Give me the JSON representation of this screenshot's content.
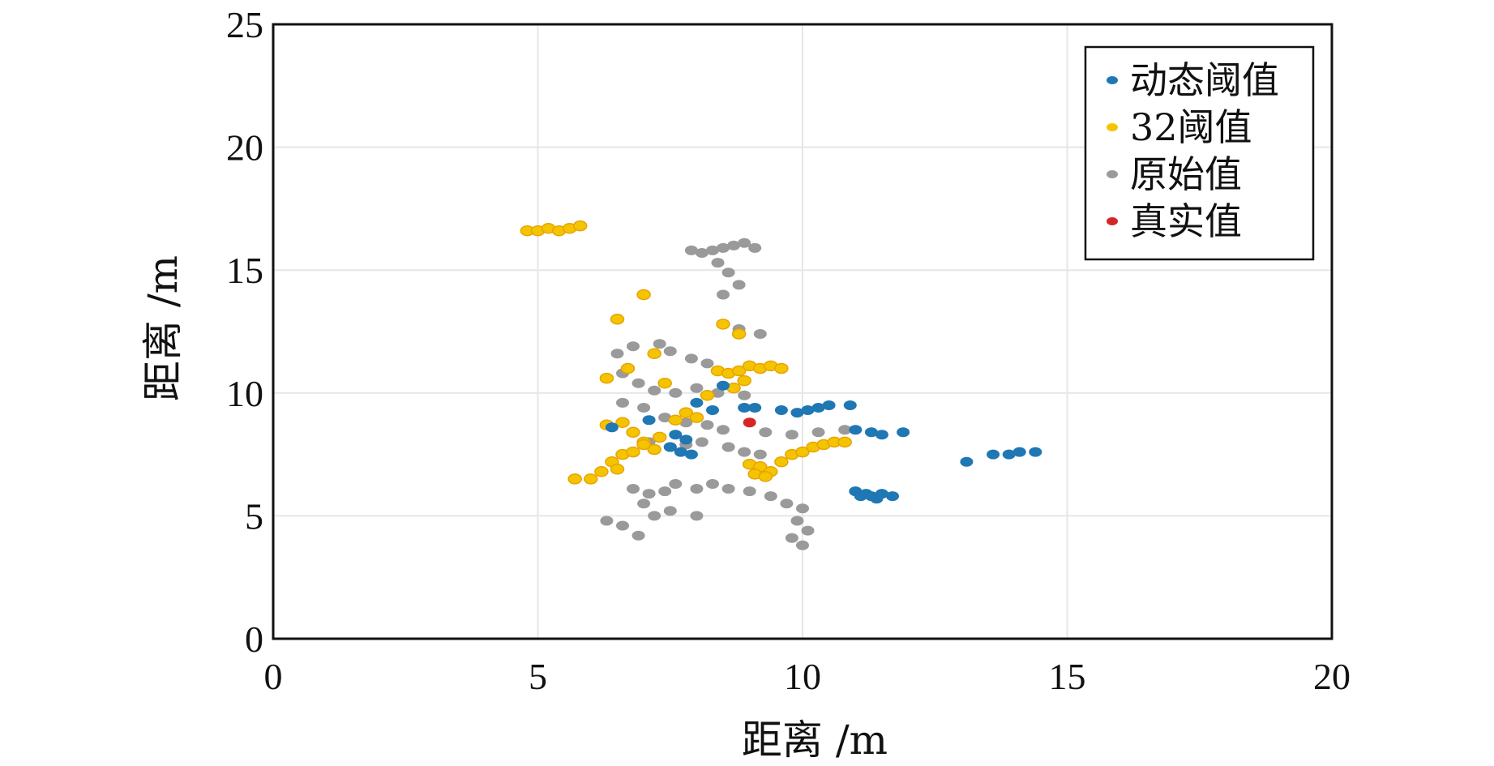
{
  "chart_data": {
    "type": "scatter",
    "xlabel": "距离 /m",
    "ylabel": "距离 /m",
    "xlim": [
      0,
      20
    ],
    "ylim": [
      0,
      25
    ],
    "xticks": [
      "0",
      "5",
      "10",
      "15",
      "20"
    ],
    "yticks": [
      "0",
      "5",
      "10",
      "15",
      "20",
      "25"
    ],
    "grid": true,
    "legend": "top-right",
    "series": [
      {
        "name": "动态阈值",
        "color": "#1f77b4",
        "points": [
          [
            6.4,
            8.6
          ],
          [
            7.1,
            8.9
          ],
          [
            7.5,
            7.8
          ],
          [
            7.7,
            7.6
          ],
          [
            7.9,
            7.5
          ],
          [
            7.8,
            8.1
          ],
          [
            7.6,
            8.3
          ],
          [
            8.0,
            9.6
          ],
          [
            8.3,
            9.3
          ],
          [
            8.5,
            10.3
          ],
          [
            8.9,
            9.4
          ],
          [
            9.1,
            9.4
          ],
          [
            9.6,
            9.3
          ],
          [
            9.9,
            9.2
          ],
          [
            10.1,
            9.3
          ],
          [
            10.3,
            9.4
          ],
          [
            10.5,
            9.5
          ],
          [
            10.9,
            9.5
          ],
          [
            11.0,
            8.5
          ],
          [
            11.3,
            8.4
          ],
          [
            11.5,
            8.3
          ],
          [
            11.9,
            8.4
          ],
          [
            11.0,
            6.0
          ],
          [
            11.1,
            5.8
          ],
          [
            11.3,
            5.8
          ],
          [
            11.5,
            5.9
          ],
          [
            11.7,
            5.8
          ],
          [
            11.2,
            5.9
          ],
          [
            11.4,
            5.7
          ],
          [
            13.1,
            7.2
          ],
          [
            13.6,
            7.5
          ],
          [
            13.9,
            7.5
          ],
          [
            14.1,
            7.6
          ],
          [
            14.4,
            7.6
          ]
        ]
      },
      {
        "name": "32阈值",
        "color": "#f5c400",
        "points": [
          [
            4.8,
            16.6
          ],
          [
            5.0,
            16.6
          ],
          [
            5.2,
            16.7
          ],
          [
            5.4,
            16.6
          ],
          [
            5.6,
            16.7
          ],
          [
            5.8,
            16.8
          ],
          [
            7.0,
            14.0
          ],
          [
            6.5,
            13.0
          ],
          [
            8.5,
            12.8
          ],
          [
            8.8,
            12.4
          ],
          [
            6.3,
            10.6
          ],
          [
            6.7,
            11.0
          ],
          [
            7.2,
            11.6
          ],
          [
            7.4,
            10.4
          ],
          [
            8.4,
            10.9
          ],
          [
            8.6,
            10.8
          ],
          [
            8.8,
            10.9
          ],
          [
            9.0,
            11.1
          ],
          [
            9.2,
            11.0
          ],
          [
            9.4,
            11.1
          ],
          [
            9.6,
            11.0
          ],
          [
            8.9,
            10.5
          ],
          [
            8.7,
            10.2
          ],
          [
            6.3,
            8.7
          ],
          [
            6.6,
            8.8
          ],
          [
            6.8,
            8.4
          ],
          [
            7.0,
            8.0
          ],
          [
            7.2,
            7.7
          ],
          [
            7.3,
            8.2
          ],
          [
            7.6,
            8.9
          ],
          [
            7.8,
            9.2
          ],
          [
            8.0,
            9.0
          ],
          [
            8.2,
            9.9
          ],
          [
            6.0,
            6.5
          ],
          [
            6.2,
            6.8
          ],
          [
            6.4,
            7.2
          ],
          [
            6.6,
            7.5
          ],
          [
            6.8,
            7.6
          ],
          [
            7.0,
            7.9
          ],
          [
            5.7,
            6.5
          ],
          [
            6.5,
            6.9
          ],
          [
            9.0,
            7.1
          ],
          [
            9.2,
            7.0
          ],
          [
            9.4,
            6.8
          ],
          [
            9.6,
            7.2
          ],
          [
            9.8,
            7.5
          ],
          [
            10.0,
            7.6
          ],
          [
            10.2,
            7.8
          ],
          [
            10.4,
            7.9
          ],
          [
            10.6,
            8.0
          ],
          [
            10.8,
            8.0
          ],
          [
            9.1,
            6.7
          ],
          [
            9.3,
            6.6
          ]
        ]
      },
      {
        "name": "原始值",
        "color": "#9a9a9a",
        "points": [
          [
            7.9,
            15.8
          ],
          [
            8.1,
            15.7
          ],
          [
            8.3,
            15.8
          ],
          [
            8.5,
            15.9
          ],
          [
            8.7,
            16.0
          ],
          [
            8.9,
            16.1
          ],
          [
            9.1,
            15.9
          ],
          [
            8.4,
            15.3
          ],
          [
            8.6,
            14.9
          ],
          [
            8.8,
            14.4
          ],
          [
            8.5,
            14.0
          ],
          [
            8.8,
            12.6
          ],
          [
            9.2,
            12.4
          ],
          [
            6.5,
            11.6
          ],
          [
            6.8,
            11.9
          ],
          [
            7.3,
            12.0
          ],
          [
            7.5,
            11.7
          ],
          [
            7.9,
            11.4
          ],
          [
            8.2,
            11.2
          ],
          [
            6.6,
            10.8
          ],
          [
            6.9,
            10.4
          ],
          [
            7.2,
            10.1
          ],
          [
            7.6,
            10.0
          ],
          [
            8.0,
            10.2
          ],
          [
            8.4,
            10.0
          ],
          [
            8.9,
            9.9
          ],
          [
            6.6,
            9.6
          ],
          [
            7.0,
            9.4
          ],
          [
            7.4,
            9.0
          ],
          [
            7.8,
            8.8
          ],
          [
            8.2,
            8.7
          ],
          [
            8.5,
            8.5
          ],
          [
            9.3,
            8.4
          ],
          [
            9.8,
            8.3
          ],
          [
            10.3,
            8.4
          ],
          [
            10.8,
            8.5
          ],
          [
            7.1,
            8.0
          ],
          [
            7.5,
            7.8
          ],
          [
            7.8,
            7.9
          ],
          [
            8.1,
            8.0
          ],
          [
            8.6,
            7.8
          ],
          [
            8.9,
            7.6
          ],
          [
            9.2,
            7.5
          ],
          [
            6.8,
            6.1
          ],
          [
            7.1,
            5.9
          ],
          [
            7.4,
            6.0
          ],
          [
            7.6,
            6.3
          ],
          [
            8.0,
            6.1
          ],
          [
            8.3,
            6.3
          ],
          [
            8.6,
            6.1
          ],
          [
            9.0,
            6.0
          ],
          [
            9.4,
            5.8
          ],
          [
            9.7,
            5.5
          ],
          [
            10.0,
            5.3
          ],
          [
            6.3,
            4.8
          ],
          [
            6.6,
            4.6
          ],
          [
            6.9,
            4.2
          ],
          [
            7.2,
            5.0
          ],
          [
            7.5,
            5.2
          ],
          [
            9.9,
            4.8
          ],
          [
            10.1,
            4.4
          ],
          [
            10.0,
            3.8
          ],
          [
            9.8,
            4.1
          ],
          [
            7.0,
            5.5
          ],
          [
            8.0,
            5.0
          ]
        ]
      },
      {
        "name": "真实值",
        "color": "#d62728",
        "points": [
          [
            9.0,
            8.8
          ]
        ]
      }
    ]
  }
}
